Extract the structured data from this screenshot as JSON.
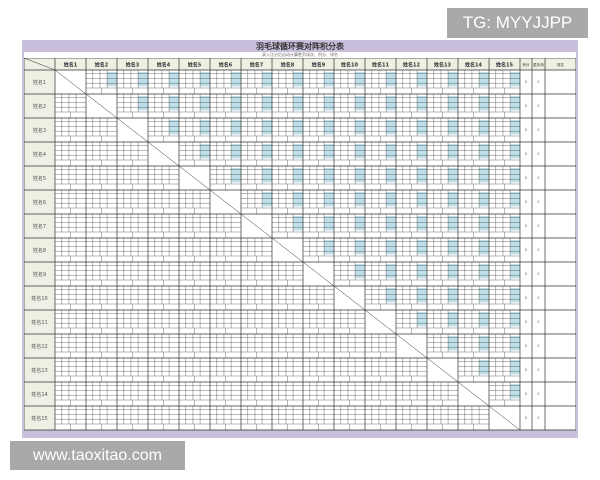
{
  "watermark_top": "TG: MYYJJPP",
  "watermark_bottom": "www.taoxitao.com",
  "sheet": {
    "title": "羽毛球循环赛对阵积分表",
    "note": "录入比分后自动计算胜负场次、积分、排名",
    "players": [
      "姓名1",
      "姓名2",
      "姓名3",
      "姓名4",
      "姓名5",
      "姓名6",
      "姓名7",
      "姓名8",
      "姓名9",
      "姓名10",
      "姓名11",
      "姓名12",
      "姓名13",
      "姓名14",
      "姓名15"
    ],
    "extra_headers": [
      "积分",
      "胜负场",
      "排名"
    ],
    "extra_values": [
      "0",
      "0",
      ""
    ],
    "colors": {
      "frame": "#c9bfdc",
      "header": "#eef0e4",
      "score_cell": "#bfe0ea",
      "grid": "#333333"
    }
  }
}
